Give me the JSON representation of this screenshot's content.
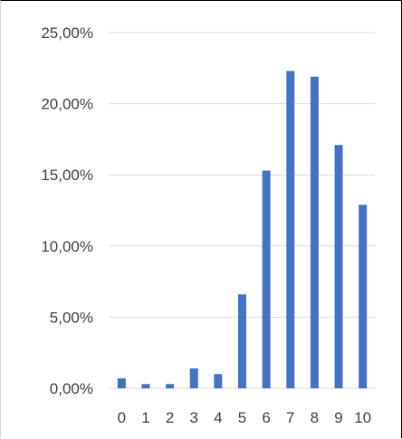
{
  "chart_data": {
    "type": "bar",
    "title": "",
    "xlabel": "",
    "ylabel": "",
    "categories": [
      "0",
      "1",
      "2",
      "3",
      "4",
      "5",
      "6",
      "7",
      "8",
      "9",
      "10"
    ],
    "series": [
      {
        "values": [
          0.7,
          0.3,
          0.3,
          1.4,
          1.0,
          6.6,
          15.3,
          22.3,
          21.9,
          17.1,
          12.9
        ]
      }
    ],
    "ylim": [
      0,
      25
    ],
    "yticks": [
      0,
      5,
      10,
      15,
      20,
      25
    ],
    "ytick_labels": [
      "0,00%",
      "5,00%",
      "10,00%",
      "15,00%",
      "20,00%",
      "25,00%"
    ],
    "grid": true,
    "legend": "none",
    "bar_color": "#4472c4",
    "grid_color": "#d9d9d9",
    "text_color": "#404040"
  }
}
